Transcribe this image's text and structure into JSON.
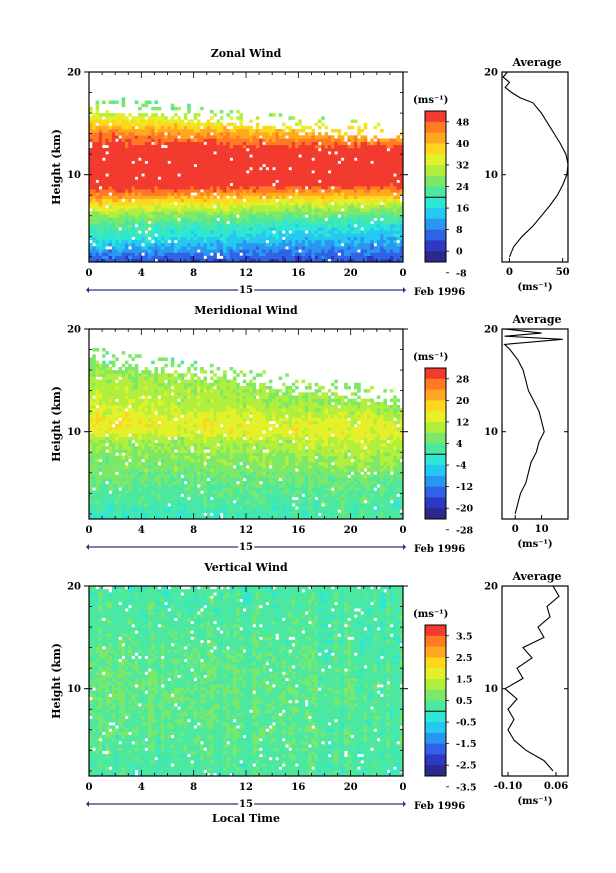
{
  "figure": {
    "global_xlabel": "Local Time",
    "panels": [
      {
        "id": "zonal",
        "title": "Zonal Wind",
        "ylabel": "Height (km)",
        "y_ticks": [
          "20",
          "10"
        ],
        "x_ticks": [
          "0",
          "4",
          "8",
          "12",
          "16",
          "20",
          "0"
        ],
        "day_label": "15",
        "month_label": "Feb 1996",
        "colorbar": {
          "unit": "(ms⁻¹)",
          "labels": [
            "48",
            "40",
            "32",
            "24",
            "16",
            "8",
            "0",
            "-8"
          ],
          "colors": [
            "#f23a2e",
            "#ff7a22",
            "#ffa81f",
            "#ffd51e",
            "#e3f02a",
            "#b1ef3c",
            "#7de868",
            "#4de8a0",
            "#2ee6d4",
            "#24c8f0",
            "#2a96f2",
            "#2f62e6",
            "#2d38c4",
            "#2b2a8c"
          ]
        },
        "average": {
          "title": "Average",
          "y_ticks": [
            "20",
            "10"
          ],
          "x_ticks": [
            "0",
            "50"
          ],
          "unit": "(ms⁻¹)"
        }
      },
      {
        "id": "meridional",
        "title": "Meridional Wind",
        "ylabel": "Height (km)",
        "y_ticks": [
          "20",
          "10"
        ],
        "x_ticks": [
          "0",
          "4",
          "8",
          "12",
          "16",
          "20",
          "0"
        ],
        "day_label": "15",
        "month_label": "Feb 1996",
        "colorbar": {
          "unit": "(ms⁻¹)",
          "labels": [
            "28",
            "20",
            "12",
            "4",
            "-4",
            "-12",
            "-20",
            "-28"
          ],
          "colors": [
            "#f23a2e",
            "#ff7a22",
            "#ffa81f",
            "#ffd51e",
            "#e3f02a",
            "#b1ef3c",
            "#7de868",
            "#4de8a0",
            "#2ee6d4",
            "#24c8f0",
            "#2a96f2",
            "#2f62e6",
            "#2d38c4",
            "#2b2a8c"
          ]
        },
        "average": {
          "title": "Average",
          "y_ticks": [
            "20",
            "10"
          ],
          "x_ticks": [
            "0",
            "10"
          ],
          "unit": "(ms⁻¹)"
        }
      },
      {
        "id": "vertical",
        "title": "Vertical Wind",
        "ylabel": "Height (km)",
        "y_ticks": [
          "20",
          "10"
        ],
        "x_ticks": [
          "0",
          "4",
          "8",
          "12",
          "16",
          "20",
          "0"
        ],
        "day_label": "15",
        "month_label": "Feb 1996",
        "colorbar": {
          "unit": "(ms⁻¹)",
          "labels": [
            "3.5",
            "2.5",
            "1.5",
            "0.5",
            "-0.5",
            "-1.5",
            "-2.5",
            "-3.5"
          ],
          "colors": [
            "#f23a2e",
            "#ff7a22",
            "#ffa81f",
            "#ffd51e",
            "#e3f02a",
            "#b1ef3c",
            "#7de868",
            "#4de8a0",
            "#2ee6d4",
            "#24c8f0",
            "#2a96f2",
            "#2f62e6",
            "#2d38c4",
            "#2b2a8c"
          ]
        },
        "average": {
          "title": "Average",
          "y_ticks": [
            "20",
            "10"
          ],
          "x_ticks": [
            "-0.10",
            "0.06"
          ],
          "unit": "(ms⁻¹)"
        }
      }
    ]
  },
  "chart_data": [
    {
      "type": "heatmap",
      "title": "Zonal Wind",
      "xlabel": "",
      "ylabel": "Height (km)",
      "xlim": [
        0,
        24
      ],
      "ylim": [
        1.5,
        20
      ],
      "x_unit": "local time (h)",
      "date": "15 Feb 1996",
      "value_range": [
        -8,
        52
      ],
      "profile_knots": [
        {
          "h": 1.5,
          "t0": 0,
          "t24": 0
        },
        {
          "h": 3,
          "t0": 10,
          "t24": 6
        },
        {
          "h": 4,
          "t0": 16,
          "t24": 10
        },
        {
          "h": 5,
          "t0": 20,
          "t24": 14
        },
        {
          "h": 6,
          "t0": 26,
          "t24": 20
        },
        {
          "h": 7,
          "t0": 34,
          "t24": 28
        },
        {
          "h": 8,
          "t0": 44,
          "t24": 38
        },
        {
          "h": 9,
          "t0": 52,
          "t24": 50
        },
        {
          "h": 10,
          "t0": 55,
          "t24": 55
        },
        {
          "h": 11,
          "t0": 55,
          "t24": 55
        },
        {
          "h": 12.5,
          "t0": 52,
          "t24": 50
        },
        {
          "h": 14,
          "t0": 45,
          "t24": 38
        },
        {
          "h": 16,
          "t0": 30,
          "t24": 20
        },
        {
          "h": 17.5,
          "t0": 20,
          "t24": 10
        }
      ],
      "data_top": {
        "t0": 16.2,
        "t24": 13.3
      }
    },
    {
      "type": "heatmap",
      "title": "Meridional Wind",
      "xlabel": "",
      "ylabel": "Height (km)",
      "xlim": [
        0,
        24
      ],
      "ylim": [
        1.5,
        20
      ],
      "x_unit": "local time (h)",
      "date": "15 Feb 1996",
      "value_range": [
        -28,
        28
      ],
      "profile_knots": [
        {
          "h": 1.5,
          "t0": -5,
          "t24": -2
        },
        {
          "h": 3,
          "t0": -2,
          "t24": -2
        },
        {
          "h": 5,
          "t0": 0,
          "t24": 0
        },
        {
          "h": 7,
          "t0": 2,
          "t24": 4
        },
        {
          "h": 9,
          "t0": 4,
          "t24": 8
        },
        {
          "h": 10,
          "t0": 10,
          "t24": 10
        },
        {
          "h": 11,
          "t0": 12,
          "t24": 8
        },
        {
          "h": 12,
          "t0": 10,
          "t24": 5
        },
        {
          "h": 13,
          "t0": 8,
          "t24": 3
        },
        {
          "h": 15,
          "t0": 6,
          "t24": 2
        },
        {
          "h": 17,
          "t0": 2,
          "t24": 0
        }
      ],
      "data_top": {
        "t0": 16.8,
        "t24": 12.5
      }
    },
    {
      "type": "heatmap",
      "title": "Vertical Wind",
      "xlabel": "Local Time",
      "ylabel": "Height (km)",
      "xlim": [
        0,
        24
      ],
      "ylim": [
        1.5,
        20
      ],
      "x_unit": "local time (h)",
      "date": "15 Feb 1996",
      "value_range": [
        -3.5,
        3.5
      ],
      "profile_knots": [
        {
          "h": 1.5,
          "t0": -0.3,
          "t24": -0.3
        },
        {
          "h": 5,
          "t0": -0.1,
          "t24": -0.2
        },
        {
          "h": 10,
          "t0": 0.1,
          "t24": -0.2
        },
        {
          "h": 15,
          "t0": -0.1,
          "t24": -0.3
        },
        {
          "h": 20,
          "t0": -0.3,
          "t24": -0.3
        }
      ],
      "data_top": {
        "t0": 20,
        "t24": 20
      }
    },
    {
      "type": "line",
      "title": "Average",
      "of": "Zonal Wind",
      "xlabel": "(ms⁻¹)",
      "ylabel": "Height (km)",
      "xlim": [
        -7,
        55
      ],
      "ylim": [
        1.5,
        20
      ],
      "points": [
        [
          0,
          2
        ],
        [
          4,
          3
        ],
        [
          12,
          4
        ],
        [
          22,
          5
        ],
        [
          30,
          6
        ],
        [
          38,
          7
        ],
        [
          45,
          8
        ],
        [
          50,
          9
        ],
        [
          54,
          10
        ],
        [
          55,
          11
        ],
        [
          53,
          12
        ],
        [
          48,
          13
        ],
        [
          42,
          14
        ],
        [
          36,
          15
        ],
        [
          30,
          16
        ],
        [
          22,
          17
        ],
        [
          10,
          17.5
        ],
        [
          2,
          18
        ],
        [
          -4,
          18.5
        ],
        [
          0,
          19
        ],
        [
          -6,
          19.5
        ],
        [
          -2,
          20
        ]
      ]
    },
    {
      "type": "line",
      "title": "Average",
      "of": "Meridional Wind",
      "xlabel": "(ms⁻¹)",
      "ylabel": "Height (km)",
      "xlim": [
        -5,
        20
      ],
      "ylim": [
        1.5,
        20
      ],
      "points": [
        [
          0,
          2
        ],
        [
          1,
          3
        ],
        [
          2,
          4
        ],
        [
          4,
          5
        ],
        [
          5,
          6
        ],
        [
          6,
          7
        ],
        [
          8,
          8
        ],
        [
          9,
          9
        ],
        [
          11,
          10
        ],
        [
          10,
          11
        ],
        [
          9,
          12
        ],
        [
          7,
          13
        ],
        [
          5,
          14
        ],
        [
          4,
          15
        ],
        [
          3,
          16
        ],
        [
          1,
          17
        ],
        [
          -2,
          18
        ],
        [
          -4,
          18.5
        ],
        [
          18,
          19
        ],
        [
          -4,
          19.3
        ],
        [
          10,
          19.6
        ],
        [
          -4,
          20
        ]
      ]
    },
    {
      "type": "line",
      "title": "Average",
      "of": "Vertical Wind",
      "xlabel": "(ms⁻¹)",
      "ylabel": "Height (km)",
      "xlim": [
        -0.12,
        0.1
      ],
      "ylim": [
        1.5,
        20
      ],
      "points": [
        [
          0.05,
          2
        ],
        [
          0.02,
          3
        ],
        [
          -0.04,
          4
        ],
        [
          -0.08,
          5
        ],
        [
          -0.1,
          6
        ],
        [
          -0.08,
          7
        ],
        [
          -0.1,
          8
        ],
        [
          -0.07,
          9
        ],
        [
          -0.11,
          10
        ],
        [
          -0.05,
          11
        ],
        [
          -0.07,
          12
        ],
        [
          -0.02,
          13
        ],
        [
          -0.05,
          14
        ],
        [
          0.02,
          15
        ],
        [
          0.0,
          16
        ],
        [
          0.04,
          17
        ],
        [
          0.03,
          18
        ],
        [
          0.07,
          19
        ],
        [
          0.05,
          20
        ]
      ]
    }
  ]
}
